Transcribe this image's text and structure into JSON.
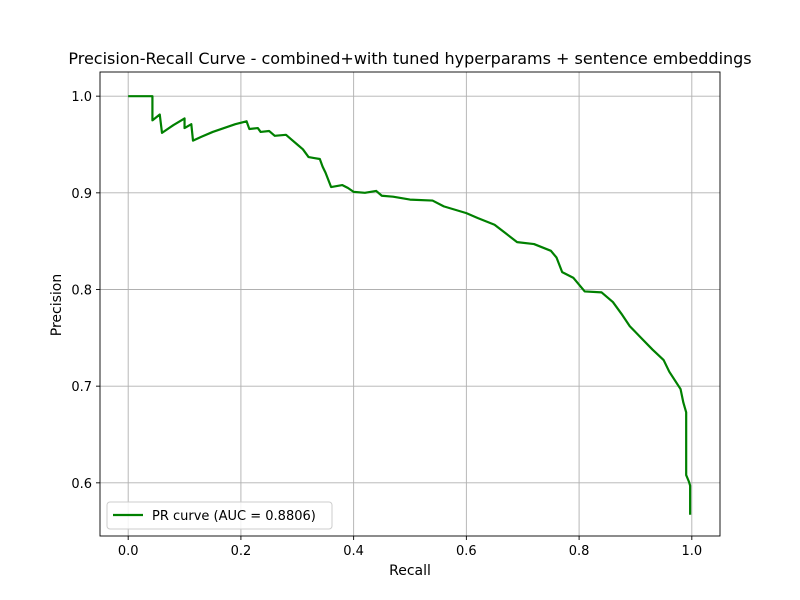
{
  "chart_data": {
    "type": "line",
    "title": "Precision-Recall Curve - combined+with tuned hyperparams + sentence embeddings",
    "xlabel": "Recall",
    "ylabel": "Precision",
    "xlim": [
      -0.05,
      1.05
    ],
    "ylim": [
      0.545,
      1.025
    ],
    "xticks": [
      0.0,
      0.2,
      0.4,
      0.6,
      0.8,
      1.0
    ],
    "xtick_labels": [
      "0.0",
      "0.2",
      "0.4",
      "0.6",
      "0.8",
      "1.0"
    ],
    "yticks": [
      0.6,
      0.7,
      0.8,
      0.9,
      1.0
    ],
    "ytick_labels": [
      "0.6",
      "0.7",
      "0.8",
      "0.9",
      "1.0"
    ],
    "grid": true,
    "legend_position": "lower-left",
    "colors": {
      "line": "#008000",
      "grid": "#b0b0b0",
      "frame": "#000000"
    },
    "series": [
      {
        "name": "PR curve (AUC = 0.8806)",
        "points": [
          [
            0.0,
            1.0
          ],
          [
            0.043,
            1.0
          ],
          [
            0.043,
            0.975
          ],
          [
            0.056,
            0.981
          ],
          [
            0.06,
            0.962
          ],
          [
            0.08,
            0.97
          ],
          [
            0.1,
            0.977
          ],
          [
            0.1,
            0.967
          ],
          [
            0.112,
            0.971
          ],
          [
            0.115,
            0.954
          ],
          [
            0.13,
            0.958
          ],
          [
            0.15,
            0.963
          ],
          [
            0.17,
            0.967
          ],
          [
            0.19,
            0.971
          ],
          [
            0.21,
            0.974
          ],
          [
            0.215,
            0.966
          ],
          [
            0.23,
            0.967
          ],
          [
            0.235,
            0.963
          ],
          [
            0.25,
            0.964
          ],
          [
            0.26,
            0.959
          ],
          [
            0.28,
            0.96
          ],
          [
            0.29,
            0.955
          ],
          [
            0.3,
            0.95
          ],
          [
            0.31,
            0.945
          ],
          [
            0.32,
            0.937
          ],
          [
            0.33,
            0.936
          ],
          [
            0.34,
            0.935
          ],
          [
            0.345,
            0.927
          ],
          [
            0.35,
            0.921
          ],
          [
            0.36,
            0.906
          ],
          [
            0.38,
            0.908
          ],
          [
            0.39,
            0.905
          ],
          [
            0.4,
            0.901
          ],
          [
            0.42,
            0.9
          ],
          [
            0.44,
            0.902
          ],
          [
            0.45,
            0.897
          ],
          [
            0.47,
            0.896
          ],
          [
            0.5,
            0.893
          ],
          [
            0.54,
            0.892
          ],
          [
            0.56,
            0.886
          ],
          [
            0.6,
            0.879
          ],
          [
            0.62,
            0.874
          ],
          [
            0.65,
            0.867
          ],
          [
            0.67,
            0.858
          ],
          [
            0.69,
            0.849
          ],
          [
            0.72,
            0.847
          ],
          [
            0.75,
            0.84
          ],
          [
            0.76,
            0.833
          ],
          [
            0.77,
            0.818
          ],
          [
            0.79,
            0.812
          ],
          [
            0.81,
            0.798
          ],
          [
            0.84,
            0.797
          ],
          [
            0.86,
            0.787
          ],
          [
            0.875,
            0.775
          ],
          [
            0.89,
            0.762
          ],
          [
            0.91,
            0.75
          ],
          [
            0.93,
            0.738
          ],
          [
            0.95,
            0.727
          ],
          [
            0.96,
            0.715
          ],
          [
            0.98,
            0.697
          ],
          [
            0.985,
            0.683
          ],
          [
            0.99,
            0.673
          ],
          [
            0.99,
            0.608
          ],
          [
            0.995,
            0.601
          ],
          [
            0.997,
            0.597
          ],
          [
            0.997,
            0.567
          ]
        ]
      }
    ]
  }
}
